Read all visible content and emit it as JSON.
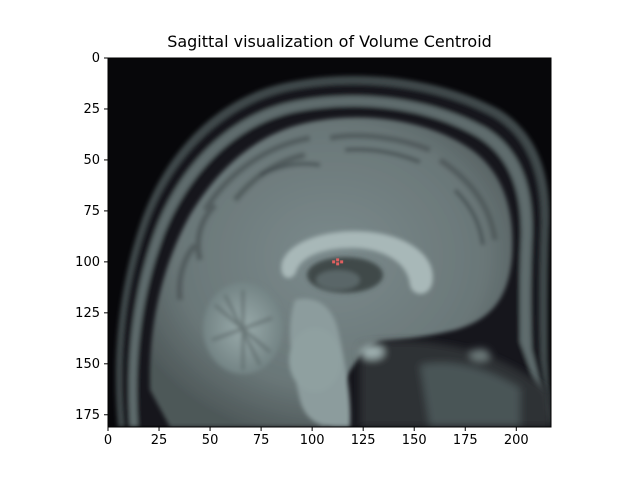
{
  "figure": {
    "title": "Sagittal visualization of Volume Centroid"
  },
  "image": {
    "subject": "sagittal brain MRI slice",
    "colormap": "bone",
    "overlay_marker_color": "#e06060",
    "centroid": {
      "x": 112,
      "y": 100
    }
  },
  "chart_data": {
    "type": "image",
    "title": "Sagittal visualization of Volume Centroid",
    "xlim": [
      0,
      217
    ],
    "ylim": [
      181,
      0
    ],
    "x_ticks": [
      0,
      25,
      50,
      75,
      100,
      125,
      150,
      175,
      200
    ],
    "y_ticks": [
      0,
      25,
      50,
      75,
      100,
      125,
      150,
      175
    ],
    "x_tick_labels": [
      "0",
      "25",
      "50",
      "75",
      "100",
      "125",
      "150",
      "175",
      "200"
    ],
    "y_tick_labels": [
      "0",
      "25",
      "50",
      "75",
      "100",
      "125",
      "150",
      "175"
    ]
  }
}
